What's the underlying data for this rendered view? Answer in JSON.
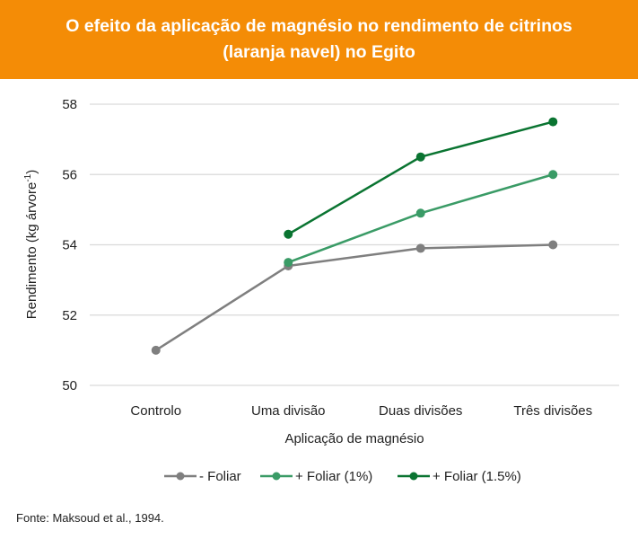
{
  "title_line1": "O efeito da aplicação de magnésio no rendimento de citrinos",
  "title_line2": "(laranja navel) no Egito",
  "source": "Fonte: Maksoud et al., 1994.",
  "chart_data": {
    "type": "line",
    "title": "O efeito da aplicação de magnésio no rendimento de citrinos (laranja navel) no Egito",
    "xlabel": "Aplicação de magnésio",
    "ylabel": "Rendimento (kg árvore",
    "ylabel_sup": "-1",
    "ylabel_end": ")",
    "categories": [
      "Controlo",
      "Uma divisão",
      "Duas divisões",
      "Três divisões"
    ],
    "ylim": [
      50,
      58
    ],
    "yticks": [
      50,
      52,
      54,
      56,
      58
    ],
    "grid": true,
    "legend": "bottom",
    "series": [
      {
        "name": "- Foliar",
        "color": "#7f7f7f",
        "values": [
          51.0,
          53.4,
          53.9,
          54.0
        ]
      },
      {
        "name": "+ Foliar (1%)",
        "color": "#3a9b66",
        "values": [
          null,
          53.5,
          54.9,
          56.0
        ]
      },
      {
        "name": "+ Foliar (1.5%)",
        "color": "#0a7431",
        "values": [
          null,
          54.3,
          56.5,
          57.5
        ]
      }
    ]
  }
}
